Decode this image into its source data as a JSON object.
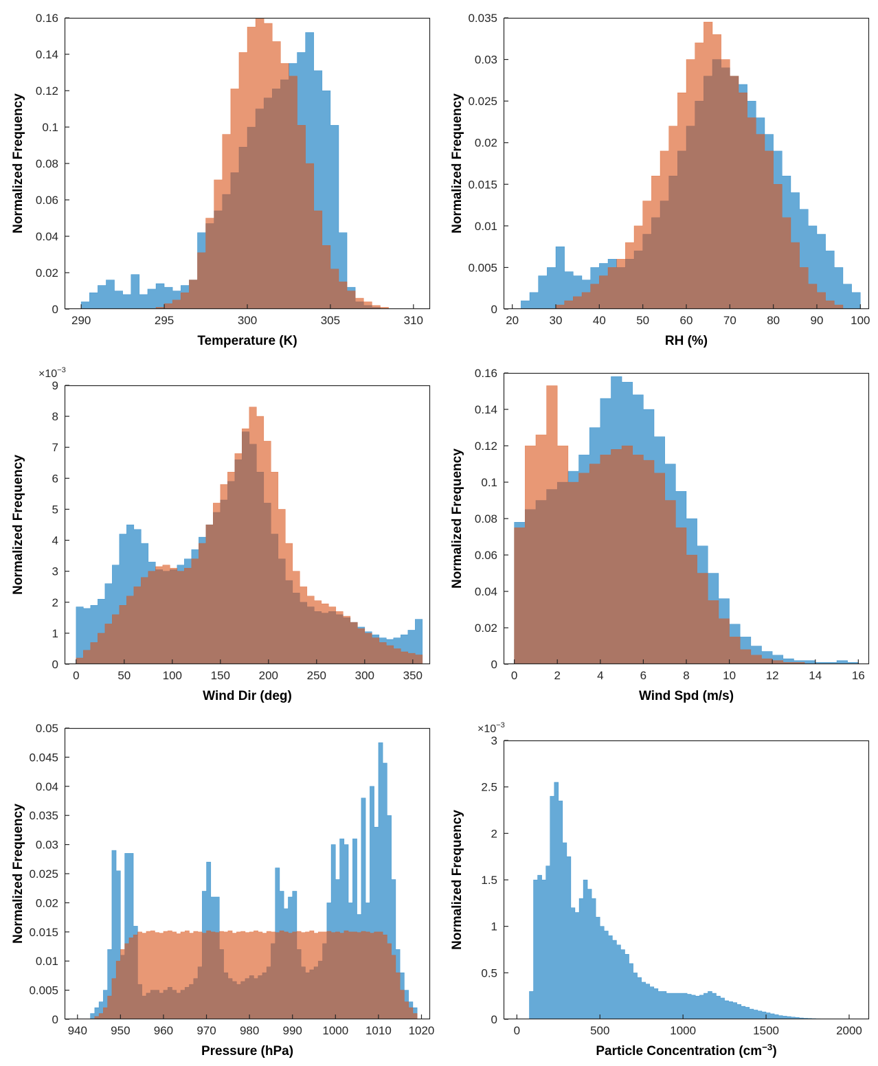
{
  "figure": {
    "description": "2x3 grid of overlaid normalized histograms comparing two datasets (blue and orange)",
    "face_alpha": 0.6,
    "axis_color": "#262626",
    "series_colors": {
      "blue": "#0072BD",
      "orange": "#D95319"
    }
  },
  "chart_data": [
    {
      "type": "bar",
      "subtype": "histogram",
      "name": "temperature",
      "xlabel": "Temperature (K)",
      "ylabel": "Normalized Frequency",
      "xlim": [
        289,
        311
      ],
      "ylim": [
        0,
        0.16
      ],
      "xticks": [
        290,
        295,
        300,
        305,
        310
      ],
      "yticks": [
        0,
        0.02,
        0.04,
        0.06,
        0.08,
        0.1,
        0.12,
        0.14,
        0.16
      ],
      "series": [
        {
          "name": "blue",
          "color": "#0072BD",
          "bin_start": 290,
          "bin_width": 0.5,
          "values": [
            0.004,
            0.009,
            0.013,
            0.016,
            0.01,
            0.008,
            0.019,
            0.008,
            0.011,
            0.014,
            0.012,
            0.01,
            0.013,
            0.016,
            0.042,
            0.047,
            0.054,
            0.063,
            0.075,
            0.089,
            0.1,
            0.11,
            0.116,
            0.121,
            0.126,
            0.135,
            0.141,
            0.152,
            0.131,
            0.12,
            0.101,
            0.042,
            0.012,
            0.004,
            0.002,
            0.001
          ]
        },
        {
          "name": "orange",
          "color": "#D95319",
          "bin_start": 294.5,
          "bin_width": 0.5,
          "values": [
            0.001,
            0.003,
            0.005,
            0.009,
            0.016,
            0.031,
            0.05,
            0.071,
            0.096,
            0.121,
            0.141,
            0.155,
            0.16,
            0.157,
            0.147,
            0.135,
            0.128,
            0.101,
            0.08,
            0.054,
            0.035,
            0.022,
            0.015,
            0.01,
            0.006,
            0.004,
            0.002,
            0.001
          ]
        }
      ]
    },
    {
      "type": "bar",
      "subtype": "histogram",
      "name": "rh",
      "xlabel": "RH (%)",
      "ylabel": "Normalized Frequency",
      "xlim": [
        18,
        102
      ],
      "ylim": [
        0,
        0.035
      ],
      "xticks": [
        20,
        30,
        40,
        50,
        60,
        70,
        80,
        90,
        100
      ],
      "yticks": [
        0,
        0.005,
        0.01,
        0.015,
        0.02,
        0.025,
        0.03,
        0.035
      ],
      "series": [
        {
          "name": "blue",
          "color": "#0072BD",
          "bin_start": 22,
          "bin_width": 2,
          "values": [
            0.001,
            0.002,
            0.004,
            0.005,
            0.0075,
            0.0045,
            0.004,
            0.0035,
            0.005,
            0.0055,
            0.006,
            0.005,
            0.006,
            0.007,
            0.009,
            0.011,
            0.013,
            0.016,
            0.019,
            0.022,
            0.025,
            0.028,
            0.03,
            0.029,
            0.028,
            0.027,
            0.025,
            0.023,
            0.021,
            0.019,
            0.016,
            0.014,
            0.012,
            0.01,
            0.009,
            0.007,
            0.005,
            0.003,
            0.002
          ]
        },
        {
          "name": "orange",
          "color": "#D95319",
          "bin_start": 30,
          "bin_width": 2,
          "values": [
            0.0005,
            0.001,
            0.0015,
            0.002,
            0.003,
            0.004,
            0.005,
            0.006,
            0.008,
            0.01,
            0.013,
            0.016,
            0.019,
            0.022,
            0.026,
            0.03,
            0.032,
            0.0345,
            0.033,
            0.03,
            0.028,
            0.026,
            0.023,
            0.021,
            0.019,
            0.015,
            0.011,
            0.008,
            0.005,
            0.003,
            0.002,
            0.001,
            0.0005
          ]
        }
      ]
    },
    {
      "type": "bar",
      "subtype": "histogram",
      "name": "wind-dir",
      "xlabel": "Wind Dir (deg)",
      "ylabel": "Normalized Frequency",
      "y_unit": "×10^{−3}",
      "values_scale": 0.001,
      "xlim": [
        -12,
        368
      ],
      "ylim": [
        0,
        9
      ],
      "xticks": [
        0,
        50,
        100,
        150,
        200,
        250,
        300,
        350
      ],
      "yticks": [
        0,
        1,
        2,
        3,
        4,
        5,
        6,
        7,
        8,
        9
      ],
      "series": [
        {
          "name": "blue",
          "color": "#0072BD",
          "bin_start": 0,
          "bin_width": 7.5,
          "values": [
            1.85,
            1.8,
            1.9,
            2.1,
            2.6,
            3.2,
            4.2,
            4.5,
            4.35,
            3.9,
            3.3,
            3.05,
            3.0,
            3.05,
            3.2,
            3.4,
            3.7,
            4.1,
            4.5,
            4.9,
            5.3,
            5.9,
            6.6,
            7.5,
            7.1,
            6.2,
            5.2,
            4.2,
            3.4,
            2.7,
            2.3,
            2.0,
            1.85,
            1.7,
            1.65,
            1.7,
            1.6,
            1.5,
            1.35,
            1.2,
            1.05,
            0.95,
            0.85,
            0.8,
            0.85,
            0.95,
            1.1,
            1.45
          ]
        },
        {
          "name": "orange",
          "color": "#D95319",
          "bin_start": 0,
          "bin_width": 7.5,
          "values": [
            0.2,
            0.45,
            0.7,
            1.0,
            1.3,
            1.6,
            1.9,
            2.2,
            2.5,
            2.8,
            3.0,
            3.15,
            3.2,
            3.1,
            3.0,
            3.1,
            3.4,
            3.9,
            4.5,
            5.2,
            5.8,
            6.2,
            6.8,
            7.6,
            8.3,
            8.0,
            7.2,
            6.2,
            5.0,
            3.9,
            3.0,
            2.5,
            2.2,
            2.05,
            1.95,
            1.85,
            1.7,
            1.55,
            1.35,
            1.15,
            1.0,
            0.85,
            0.7,
            0.6,
            0.5,
            0.4,
            0.35,
            0.3
          ]
        }
      ]
    },
    {
      "type": "bar",
      "subtype": "histogram",
      "name": "wind-spd",
      "xlabel": "Wind Spd (m/s)",
      "ylabel": "Normalized Frequency",
      "xlim": [
        -0.5,
        16.5
      ],
      "ylim": [
        0,
        0.16
      ],
      "xticks": [
        0,
        2,
        4,
        6,
        8,
        10,
        12,
        14,
        16
      ],
      "yticks": [
        0,
        0.02,
        0.04,
        0.06,
        0.08,
        0.1,
        0.12,
        0.14,
        0.16
      ],
      "series": [
        {
          "name": "blue",
          "color": "#0072BD",
          "bin_start": 0,
          "bin_width": 0.5,
          "values": [
            0.078,
            0.085,
            0.09,
            0.096,
            0.1,
            0.106,
            0.115,
            0.13,
            0.146,
            0.158,
            0.155,
            0.148,
            0.14,
            0.125,
            0.11,
            0.095,
            0.08,
            0.065,
            0.05,
            0.036,
            0.022,
            0.015,
            0.01,
            0.007,
            0.005,
            0.003,
            0.002,
            0.002,
            0.001,
            0.001,
            0.002,
            0.001
          ]
        },
        {
          "name": "orange",
          "color": "#D95319",
          "bin_start": 0,
          "bin_width": 0.5,
          "values": [
            0.075,
            0.12,
            0.126,
            0.153,
            0.12,
            0.1,
            0.105,
            0.11,
            0.115,
            0.118,
            0.12,
            0.115,
            0.112,
            0.105,
            0.09,
            0.075,
            0.06,
            0.05,
            0.035,
            0.025,
            0.015,
            0.008,
            0.005,
            0.003,
            0.002,
            0.001,
            0.001
          ]
        }
      ]
    },
    {
      "type": "bar",
      "subtype": "histogram",
      "name": "pressure",
      "xlabel": "Pressure (hPa)",
      "ylabel": "Normalized Frequency",
      "xlim": [
        937,
        1022
      ],
      "ylim": [
        0,
        0.05
      ],
      "xticks": [
        940,
        950,
        960,
        970,
        980,
        990,
        1000,
        1010,
        1020
      ],
      "yticks": [
        0,
        0.005,
        0.01,
        0.015,
        0.02,
        0.025,
        0.03,
        0.035,
        0.04,
        0.045,
        0.05
      ],
      "series": [
        {
          "name": "blue",
          "color": "#0072BD",
          "bin_start": 943,
          "bin_width": 1,
          "values": [
            0.001,
            0.002,
            0.003,
            0.005,
            0.012,
            0.029,
            0.0255,
            0.011,
            0.0285,
            0.0285,
            0.016,
            0.006,
            0.004,
            0.0045,
            0.005,
            0.005,
            0.0045,
            0.005,
            0.0055,
            0.005,
            0.0045,
            0.005,
            0.0055,
            0.006,
            0.007,
            0.009,
            0.022,
            0.027,
            0.021,
            0.021,
            0.012,
            0.008,
            0.007,
            0.0065,
            0.006,
            0.0065,
            0.007,
            0.0075,
            0.007,
            0.0075,
            0.008,
            0.009,
            0.013,
            0.026,
            0.022,
            0.019,
            0.021,
            0.022,
            0.012,
            0.009,
            0.008,
            0.0085,
            0.009,
            0.01,
            0.013,
            0.02,
            0.03,
            0.024,
            0.031,
            0.03,
            0.02,
            0.031,
            0.018,
            0.038,
            0.02,
            0.04,
            0.033,
            0.0475,
            0.044,
            0.035,
            0.024,
            0.012,
            0.008,
            0.005,
            0.003,
            0.002
          ]
        },
        {
          "name": "orange",
          "color": "#D95319",
          "bin_start": 944,
          "bin_width": 1,
          "values": [
            0.0005,
            0.001,
            0.002,
            0.004,
            0.007,
            0.01,
            0.012,
            0.013,
            0.014,
            0.0145,
            0.015,
            0.0148,
            0.0151,
            0.0152,
            0.0149,
            0.0148,
            0.0151,
            0.0152,
            0.015,
            0.0147,
            0.015,
            0.0152,
            0.0148,
            0.0151,
            0.015,
            0.0148,
            0.0152,
            0.015,
            0.0149,
            0.0151,
            0.015,
            0.0152,
            0.0148,
            0.015,
            0.0151,
            0.0149,
            0.015,
            0.0152,
            0.015,
            0.0148,
            0.0151,
            0.015,
            0.0149,
            0.0152,
            0.015,
            0.0148,
            0.015,
            0.0151,
            0.0149,
            0.015,
            0.0152,
            0.0148,
            0.015,
            0.015,
            0.0151,
            0.0149,
            0.015,
            0.0148,
            0.0152,
            0.015,
            0.015,
            0.0149,
            0.0151,
            0.015,
            0.0148,
            0.015,
            0.015,
            0.0145,
            0.013,
            0.011,
            0.008,
            0.005,
            0.003,
            0.002,
            0.001
          ]
        }
      ]
    },
    {
      "type": "bar",
      "subtype": "histogram",
      "name": "particle-concentration",
      "xlabel": "Particle Concentration (cm^{−3})",
      "ylabel": "Normalized Frequency",
      "y_unit": "×10^{−3}",
      "values_scale": 0.001,
      "xlim": [
        -80,
        2120
      ],
      "ylim": [
        0,
        3
      ],
      "xticks": [
        0,
        500,
        1000,
        1500,
        2000
      ],
      "yticks": [
        0,
        0.5,
        1,
        1.5,
        2,
        2.5,
        3
      ],
      "series": [
        {
          "name": "blue",
          "color": "#0072BD",
          "bin_start": 0,
          "bin_width": 25,
          "values": [
            0,
            0,
            0,
            0.3,
            1.5,
            1.55,
            1.5,
            1.65,
            2.4,
            2.55,
            2.35,
            1.9,
            1.75,
            1.2,
            1.15,
            1.3,
            1.5,
            1.4,
            1.3,
            1.1,
            1.0,
            0.95,
            0.9,
            0.85,
            0.8,
            0.75,
            0.7,
            0.6,
            0.5,
            0.45,
            0.4,
            0.38,
            0.35,
            0.33,
            0.3,
            0.3,
            0.28,
            0.28,
            0.28,
            0.28,
            0.28,
            0.27,
            0.26,
            0.25,
            0.26,
            0.28,
            0.3,
            0.28,
            0.25,
            0.23,
            0.2,
            0.19,
            0.18,
            0.16,
            0.14,
            0.13,
            0.11,
            0.1,
            0.09,
            0.08,
            0.07,
            0.06,
            0.05,
            0.04,
            0.035,
            0.03,
            0.025,
            0.02,
            0.015,
            0.012,
            0.01,
            0.008,
            0.006,
            0.005,
            0.004,
            0.003,
            0.002,
            0.002,
            0.001,
            0.001
          ]
        }
      ]
    }
  ]
}
